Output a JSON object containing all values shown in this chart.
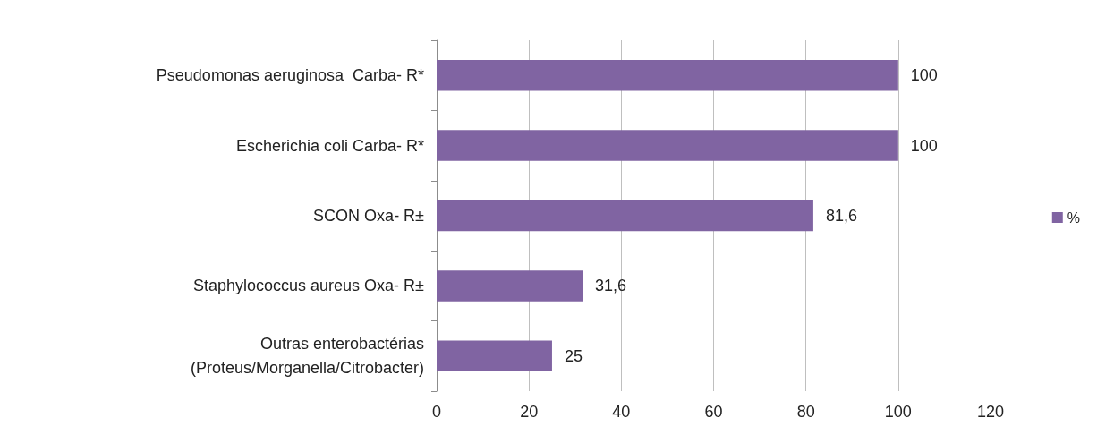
{
  "chart_data": {
    "type": "bar",
    "orientation": "horizontal",
    "categories": [
      "Pseudomonas aeruginosa  Carba- R*",
      "Escherichia coli Carba- R*",
      "SCON Oxa- R±",
      "Staphylococcus aureus Oxa- R±",
      "Outras enterobactérias\n(Proteus/Morganella/Citrobacter)"
    ],
    "series": [
      {
        "name": "%",
        "color": "#8064a2",
        "values": [
          100,
          100,
          81.6,
          31.6,
          25
        ],
        "value_labels": [
          "100",
          "100",
          "81,6",
          "31,6",
          "25"
        ]
      }
    ],
    "xlim": [
      0,
      120
    ],
    "xticks": [
      0,
      20,
      40,
      60,
      80,
      100,
      120
    ],
    "grid": "x",
    "legend": "right"
  }
}
